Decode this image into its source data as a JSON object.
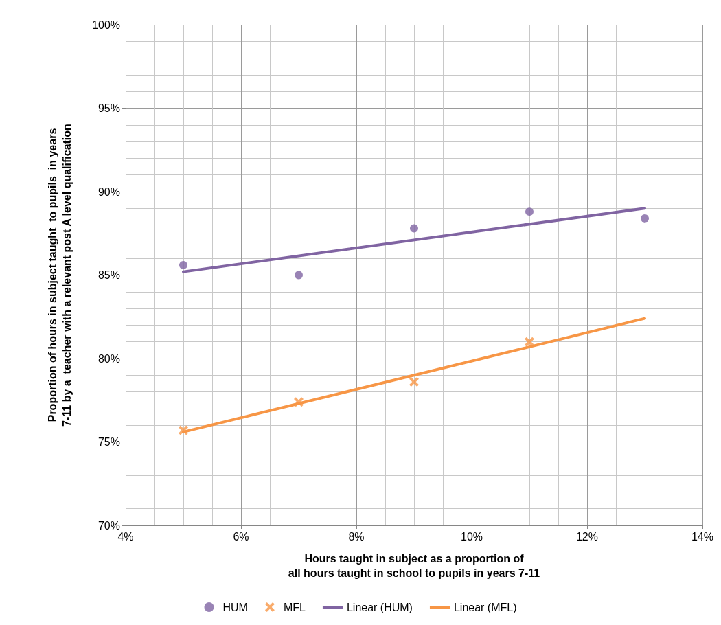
{
  "chart_data": {
    "type": "scatter",
    "xlabel": "Hours taught in subject as a proportion of\nall hours taught in school to pupils in years 7-11",
    "ylabel": "Proportion of hours in subject taught  to pupils  in years\n7-11 by a  teacher with a relevant post A level qualification",
    "xlim": [
      4,
      14
    ],
    "ylim": [
      70,
      100
    ],
    "xticks": [
      {
        "value": 4,
        "label": "4%"
      },
      {
        "value": 6,
        "label": "6%"
      },
      {
        "value": 8,
        "label": "8%"
      },
      {
        "value": 10,
        "label": "10%"
      },
      {
        "value": 12,
        "label": "12%"
      },
      {
        "value": 14,
        "label": "14%"
      }
    ],
    "yticks": [
      {
        "value": 70,
        "label": "70%"
      },
      {
        "value": 75,
        "label": "75%"
      },
      {
        "value": 80,
        "label": "80%"
      },
      {
        "value": 85,
        "label": "85%"
      },
      {
        "value": 90,
        "label": "90%"
      },
      {
        "value": 95,
        "label": "95%"
      },
      {
        "value": 100,
        "label": "100%"
      }
    ],
    "grid": true,
    "legend": "bottom",
    "series": [
      {
        "name": "HUM",
        "marker": "circle",
        "color": "#8064a2",
        "x": [
          5,
          7,
          9,
          11,
          13
        ],
        "values": [
          85.6,
          85.0,
          87.8,
          88.8,
          88.4
        ]
      },
      {
        "name": "MFL",
        "marker": "cross",
        "color": "#f79646",
        "x": [
          5,
          7,
          9,
          11
        ],
        "values": [
          75.7,
          77.4,
          78.6,
          81.0
        ]
      },
      {
        "name": "Linear (HUM)",
        "type": "line",
        "marker": "none",
        "color": "#8064a2",
        "x": [
          5,
          13
        ],
        "values": [
          85.2,
          89.0
        ]
      },
      {
        "name": "Linear (MFL)",
        "type": "line",
        "marker": "none",
        "color": "#f79646",
        "x": [
          5,
          13
        ],
        "values": [
          75.6,
          82.4
        ]
      }
    ]
  }
}
